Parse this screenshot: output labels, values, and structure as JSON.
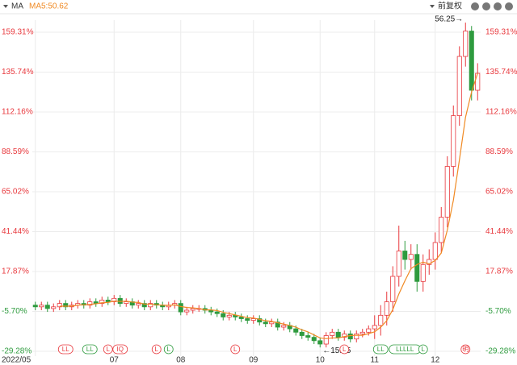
{
  "chart_data": {
    "type": "candlestick",
    "indicator": "MA",
    "ma_label": "MA5:50.62",
    "adjust": "前复权",
    "x": [
      0,
      1,
      2,
      3,
      4,
      5,
      6,
      7,
      8,
      9,
      10,
      11,
      12,
      13,
      14,
      15,
      16,
      17,
      18,
      19,
      20,
      21,
      22,
      23,
      24,
      25,
      26,
      27,
      28,
      29,
      30,
      31,
      32,
      33,
      34,
      35,
      36,
      37,
      38,
      39,
      40,
      41,
      42,
      43,
      44,
      45,
      46,
      47,
      48,
      49,
      50,
      51,
      52,
      53,
      54,
      55,
      56,
      57,
      58,
      59,
      60,
      61,
      62,
      63,
      64,
      65,
      66,
      67,
      68,
      69,
      70,
      71,
      72,
      73
    ],
    "open": [
      -2,
      -3,
      -2,
      -4,
      -3,
      -1,
      -3,
      -2,
      -1,
      -2,
      0,
      -1,
      1,
      0,
      2,
      -1,
      0,
      -2,
      -1,
      -3,
      -1,
      -2,
      -3,
      -2,
      -1,
      -6,
      -5,
      -4,
      -4,
      -5,
      -6,
      -7,
      -9,
      -8,
      -9,
      -10,
      -11,
      -10,
      -12,
      -13,
      -12,
      -15,
      -14,
      -16,
      -18,
      -20,
      -21,
      -23,
      -25,
      -20,
      -18,
      -21,
      -19,
      -22,
      -19,
      -18,
      -16,
      -14,
      -8,
      0,
      15,
      30,
      25,
      28,
      12,
      22,
      25,
      35,
      50,
      80,
      110,
      145,
      160,
      125
    ],
    "close": [
      -3,
      -2,
      -4,
      -3,
      -1,
      -3,
      -2,
      -1,
      -2,
      0,
      -1,
      1,
      0,
      2,
      -1,
      0,
      -2,
      -1,
      -3,
      -1,
      -2,
      -3,
      -2,
      -1,
      -6,
      -5,
      -4,
      -4,
      -5,
      -6,
      -7,
      -9,
      -8,
      -9,
      -10,
      -11,
      -10,
      -12,
      -13,
      -12,
      -15,
      -14,
      -16,
      -18,
      -20,
      -21,
      -23,
      -25,
      -20,
      -18,
      -21,
      -19,
      -22,
      -19,
      -18,
      -16,
      -14,
      -8,
      0,
      15,
      30,
      25,
      28,
      12,
      22,
      25,
      35,
      50,
      80,
      110,
      145,
      160,
      125,
      135
    ],
    "high": [
      0,
      0,
      0,
      -1,
      1,
      1,
      0,
      1,
      1,
      2,
      2,
      3,
      3,
      4,
      4,
      2,
      2,
      1,
      1,
      1,
      1,
      0,
      0,
      1,
      1,
      -3,
      -2,
      -2,
      -2,
      -3,
      -4,
      -5,
      -6,
      -6,
      -7,
      -8,
      -8,
      -8,
      -10,
      -10,
      -10,
      -12,
      -12,
      -14,
      -16,
      -18,
      -19,
      -21,
      -18,
      -16,
      -16,
      -17,
      -17,
      -17,
      -16,
      -14,
      -8,
      -2,
      6,
      21,
      45,
      36,
      34,
      34,
      28,
      31,
      41,
      56,
      86,
      116,
      151,
      165,
      163,
      141
    ],
    "low": [
      -5,
      -5,
      -6,
      -6,
      -5,
      -5,
      -5,
      -4,
      -4,
      -4,
      -3,
      -3,
      -2,
      -2,
      -3,
      -3,
      -4,
      -4,
      -5,
      -5,
      -4,
      -5,
      -5,
      -4,
      -8,
      -8,
      -7,
      -6,
      -7,
      -8,
      -9,
      -11,
      -11,
      -11,
      -12,
      -13,
      -13,
      -14,
      -15,
      -15,
      -17,
      -17,
      -18,
      -20,
      -22,
      -23,
      -25,
      -27,
      -27,
      -22,
      -23,
      -23,
      -24,
      -24,
      -21,
      -20,
      -22,
      -20,
      -14,
      -6,
      9,
      19,
      19,
      6,
      6,
      16,
      19,
      29,
      44,
      74,
      104,
      139,
      119,
      119
    ],
    "ma5": [
      null,
      null,
      null,
      null,
      -2.6,
      -2.6,
      -2.6,
      -2,
      -1.8,
      -1.6,
      -1.2,
      -0.6,
      -0.4,
      0.4,
      0.2,
      0.4,
      -0.2,
      -0.4,
      -1.4,
      -1.4,
      -1.8,
      -2,
      -2.2,
      -1.8,
      -2.8,
      -3.4,
      -3.6,
      -4,
      -4.8,
      -4.8,
      -5.2,
      -6.2,
      -7,
      -7.8,
      -8.6,
      -9.4,
      -9.6,
      -10.4,
      -11.2,
      -11.6,
      -12.4,
      -13.2,
      -14,
      -15,
      -16.6,
      -17.8,
      -19.6,
      -21.4,
      -21.8,
      -21.4,
      -21.4,
      -20.6,
      -20,
      -19.8,
      -19.8,
      -18.8,
      -17.8,
      -15,
      -11.2,
      -4.6,
      4.6,
      12.4,
      19.6,
      22,
      23.4,
      22.4,
      24.4,
      28.8,
      42.4,
      60,
      84,
      109,
      124,
      135
    ],
    "up_color": "#e8383d",
    "down_color": "#2e9b3e",
    "ma_color": "#f08a24",
    "xlim": [
      -0.5,
      73.5
    ],
    "ylim": [
      -32.14,
      166.45
    ],
    "yticks": [
      {
        "value": -29.28,
        "label": "-29.28%"
      },
      {
        "value": -5.7,
        "label": "-5.70%"
      },
      {
        "value": 17.87,
        "label": "17.87%"
      },
      {
        "value": 41.44,
        "label": "41.44%"
      },
      {
        "value": 65.02,
        "label": "65.02%"
      },
      {
        "value": 88.59,
        "label": "88.59%"
      },
      {
        "value": 112.16,
        "label": "112.16%"
      },
      {
        "value": 135.74,
        "label": "135.74%"
      },
      {
        "value": 159.31,
        "label": "159.31%"
      }
    ],
    "xticks": [
      {
        "value": 0,
        "label": "2022/05"
      },
      {
        "value": 13,
        "label": "07"
      },
      {
        "value": 24,
        "label": "08"
      },
      {
        "value": 36,
        "label": "09"
      },
      {
        "value": 47,
        "label": "10"
      },
      {
        "value": 56,
        "label": "11"
      },
      {
        "value": 66,
        "label": "12"
      }
    ],
    "grid": true,
    "annotations": [
      {
        "x": 71,
        "y": 165,
        "text": "56.25→"
      },
      {
        "x": 47,
        "y": -27,
        "text": "←15.95"
      }
    ],
    "events": [
      {
        "x": 5,
        "label": "LL",
        "color": "#e8383d"
      },
      {
        "x": 9,
        "label": "LL",
        "color": "#2e9b3e"
      },
      {
        "x": 12,
        "label": "L",
        "color": "#e8383d"
      },
      {
        "x": 14,
        "label": "IQ",
        "color": "#e8383d"
      },
      {
        "x": 20,
        "label": "L",
        "color": "#e8383d"
      },
      {
        "x": 22,
        "label": "L",
        "color": "#2e9b3e"
      },
      {
        "x": 33,
        "label": "L",
        "color": "#e8383d"
      },
      {
        "x": 51,
        "label": "L",
        "color": "#e8383d"
      },
      {
        "x": 57,
        "label": "LL",
        "color": "#2e9b3e"
      },
      {
        "x": 61,
        "label": "LLLLL",
        "color": "#2e9b3e"
      },
      {
        "x": 64,
        "label": "L",
        "color": "#2e9b3e"
      },
      {
        "x": 71,
        "label": "明",
        "color": "#e8383d"
      }
    ]
  }
}
